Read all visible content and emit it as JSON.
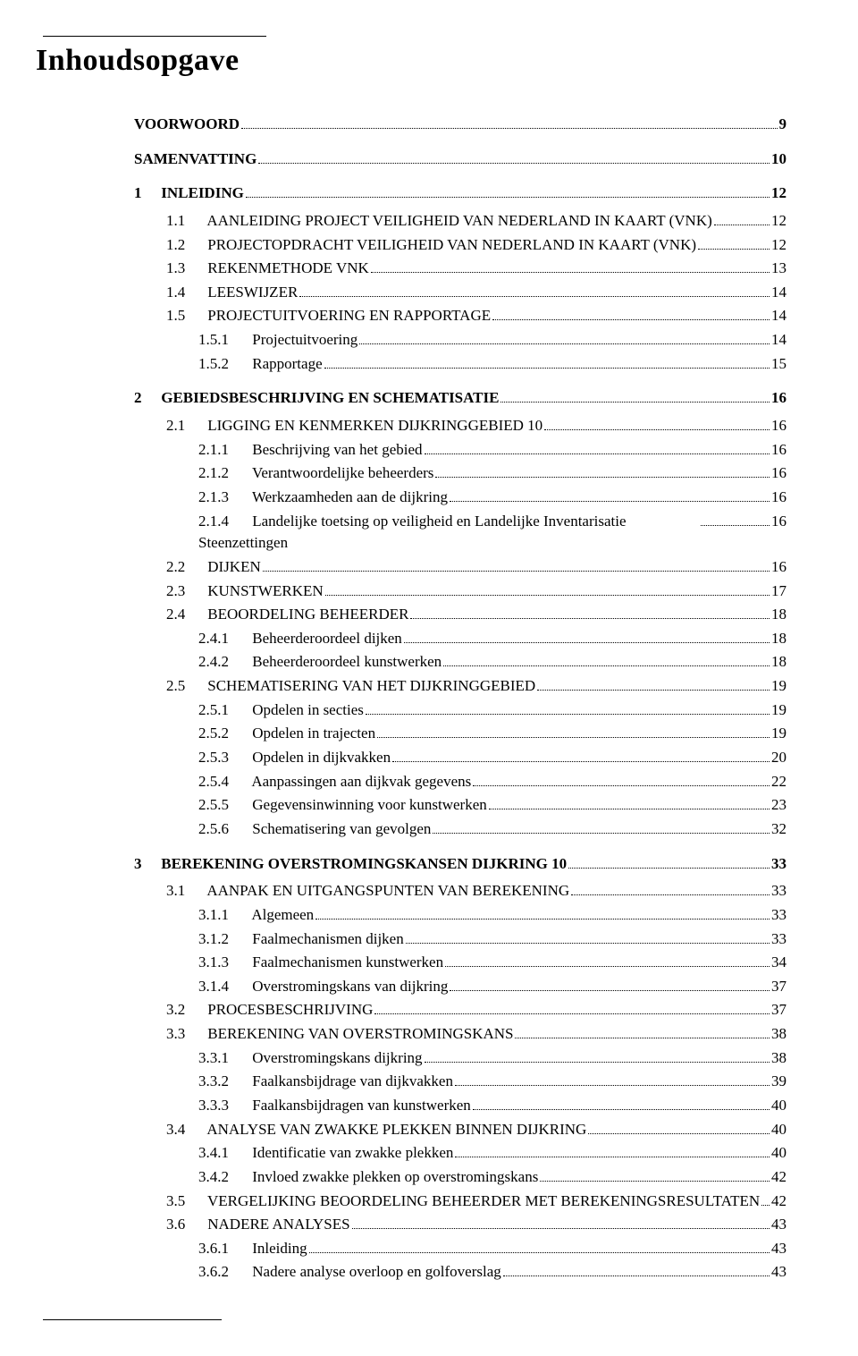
{
  "title": "Inhoudsopgave",
  "entries": [
    {
      "level": 0,
      "num": "",
      "label": "VOORWOORD",
      "page": "9",
      "bold": true
    },
    {
      "level": 0,
      "num": "",
      "label": "SAMENVATTING",
      "page": "10",
      "bold": true
    },
    {
      "level": 1,
      "num": "1",
      "label": "INLEIDING",
      "page": "12",
      "bold": true
    },
    {
      "level": 2,
      "num": "1.1",
      "label": "AANLEIDING PROJECT VEILIGHEID VAN NEDERLAND IN KAART (VNK)",
      "page": "12",
      "sc": true
    },
    {
      "level": 2,
      "num": "1.2",
      "label": "PROJECTOPDRACHT VEILIGHEID VAN NEDERLAND IN KAART (VNK)",
      "page": "12",
      "sc": true
    },
    {
      "level": 2,
      "num": "1.3",
      "label": "REKENMETHODE VNK",
      "page": "13",
      "sc": true
    },
    {
      "level": 2,
      "num": "1.4",
      "label": "LEESWIJZER",
      "page": "14",
      "sc": true
    },
    {
      "level": 2,
      "num": "1.5",
      "label": "PROJECTUITVOERING EN RAPPORTAGE",
      "page": "14",
      "sc": true
    },
    {
      "level": 3,
      "num": "1.5.1",
      "label": "Projectuitvoering",
      "page": "14"
    },
    {
      "level": 3,
      "num": "1.5.2",
      "label": "Rapportage",
      "page": "15"
    },
    {
      "level": 1,
      "num": "2",
      "label": "GEBIEDSBESCHRIJVING EN SCHEMATISATIE",
      "page": "16",
      "bold": true
    },
    {
      "level": 2,
      "num": "2.1",
      "label": "LIGGING EN KENMERKEN DIJKRINGGEBIED 10",
      "page": "16",
      "sc": true
    },
    {
      "level": 3,
      "num": "2.1.1",
      "label": "Beschrijving van het gebied",
      "page": "16"
    },
    {
      "level": 3,
      "num": "2.1.2",
      "label": "Verantwoordelijke beheerders",
      "page": "16"
    },
    {
      "level": 3,
      "num": "2.1.3",
      "label": "Werkzaamheden aan de dijkring",
      "page": "16"
    },
    {
      "level": 3,
      "num": "2.1.4",
      "label": "Landelijke toetsing op veiligheid en Landelijke Inventarisatie Steenzettingen",
      "page": "16",
      "wrap": true
    },
    {
      "level": 2,
      "num": "2.2",
      "label": "DIJKEN",
      "page": "16",
      "sc": true
    },
    {
      "level": 2,
      "num": "2.3",
      "label": "KUNSTWERKEN",
      "page": "17",
      "sc": true
    },
    {
      "level": 2,
      "num": "2.4",
      "label": "BEOORDELING BEHEERDER",
      "page": "18",
      "sc": true
    },
    {
      "level": 3,
      "num": "2.4.1",
      "label": "Beheerderoordeel dijken",
      "page": "18"
    },
    {
      "level": 3,
      "num": "2.4.2",
      "label": "Beheerderoordeel kunstwerken",
      "page": "18"
    },
    {
      "level": 2,
      "num": "2.5",
      "label": "SCHEMATISERING VAN HET DIJKRINGGEBIED",
      "page": "19",
      "sc": true
    },
    {
      "level": 3,
      "num": "2.5.1",
      "label": "Opdelen in secties",
      "page": "19"
    },
    {
      "level": 3,
      "num": "2.5.2",
      "label": "Opdelen in trajecten",
      "page": "19"
    },
    {
      "level": 3,
      "num": "2.5.3",
      "label": "Opdelen in dijkvakken",
      "page": "20"
    },
    {
      "level": 3,
      "num": "2.5.4",
      "label": "Aanpassingen aan dijkvak gegevens",
      "page": "22"
    },
    {
      "level": 3,
      "num": "2.5.5",
      "label": "Gegevensinwinning voor kunstwerken",
      "page": "23"
    },
    {
      "level": 3,
      "num": "2.5.6",
      "label": "Schematisering van gevolgen",
      "page": "32"
    },
    {
      "level": 1,
      "num": "3",
      "label": "BEREKENING OVERSTROMINGSKANSEN DIJKRING 10",
      "page": "33",
      "bold": true
    },
    {
      "level": 2,
      "num": "3.1",
      "label": "AANPAK EN UITGANGSPUNTEN VAN BEREKENING",
      "page": "33",
      "sc": true
    },
    {
      "level": 3,
      "num": "3.1.1",
      "label": "Algemeen",
      "page": "33"
    },
    {
      "level": 3,
      "num": "3.1.2",
      "label": "Faalmechanismen dijken",
      "page": "33"
    },
    {
      "level": 3,
      "num": "3.1.3",
      "label": "Faalmechanismen kunstwerken",
      "page": "34"
    },
    {
      "level": 3,
      "num": "3.1.4",
      "label": "Overstromingskans van dijkring",
      "page": "37"
    },
    {
      "level": 2,
      "num": "3.2",
      "label": "PROCESBESCHRIJVING",
      "page": "37",
      "sc": true
    },
    {
      "level": 2,
      "num": "3.3",
      "label": "BEREKENING VAN OVERSTROMINGSKANS",
      "page": "38",
      "sc": true
    },
    {
      "level": 3,
      "num": "3.3.1",
      "label": "Overstromingskans dijkring",
      "page": "38"
    },
    {
      "level": 3,
      "num": "3.3.2",
      "label": "Faalkansbijdrage van dijkvakken",
      "page": "39"
    },
    {
      "level": 3,
      "num": "3.3.3",
      "label": "Faalkansbijdragen van kunstwerken",
      "page": "40"
    },
    {
      "level": 2,
      "num": "3.4",
      "label": "ANALYSE VAN ZWAKKE PLEKKEN BINNEN DIJKRING",
      "page": "40",
      "sc": true
    },
    {
      "level": 3,
      "num": "3.4.1",
      "label": "Identificatie van zwakke plekken",
      "page": "40"
    },
    {
      "level": 3,
      "num": "3.4.2",
      "label": "Invloed zwakke plekken op overstromingskans",
      "page": "42"
    },
    {
      "level": 2,
      "num": "3.5",
      "label": "VERGELIJKING BEOORDELING BEHEERDER MET BEREKENINGSRESULTATEN",
      "page": "42",
      "sc": true
    },
    {
      "level": 2,
      "num": "3.6",
      "label": "NADERE ANALYSES",
      "page": "43",
      "sc": true
    },
    {
      "level": 3,
      "num": "3.6.1",
      "label": "Inleiding",
      "page": "43"
    },
    {
      "level": 3,
      "num": "3.6.2",
      "label": "Nadere analyse overloop en golfoverslag",
      "page": "43"
    }
  ]
}
